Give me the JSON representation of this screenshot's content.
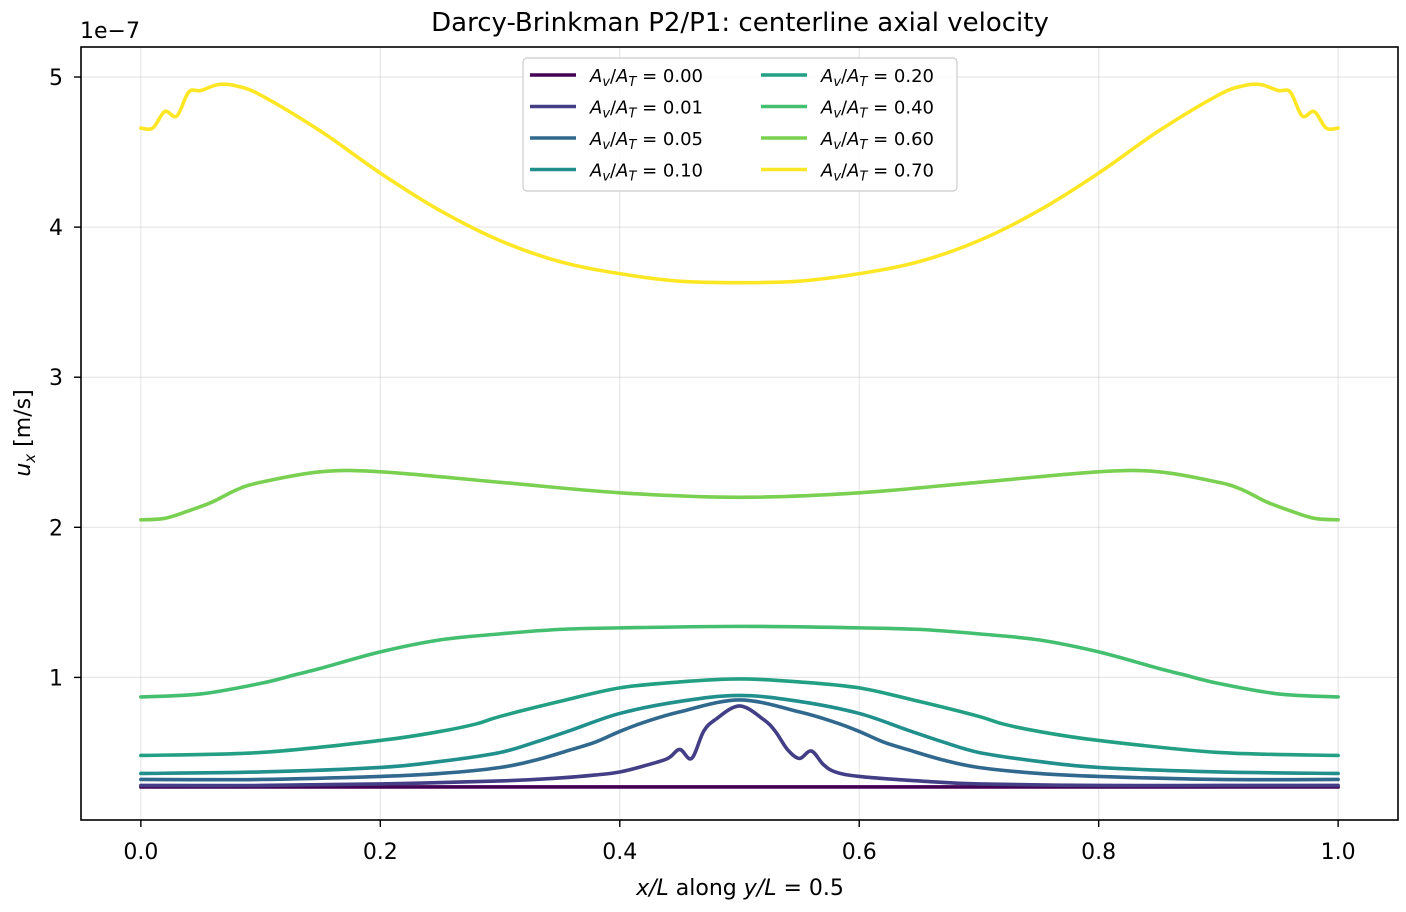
{
  "chart_data": {
    "type": "line",
    "title": "Darcy-Brinkman P2/P1: centerline axial velocity",
    "xlabel": {
      "var": "x/L",
      "mid": " along ",
      "var2": "y/L",
      "tail": " = 0.5"
    },
    "ylabel": {
      "var": "u",
      "sub": "x",
      "tail": " [m/s]"
    },
    "y_offset_label": "1e−7",
    "xlim": [
      -0.05,
      1.05
    ],
    "ylim": [
      0.05,
      5.2
    ],
    "xticks": [
      0.0,
      0.2,
      0.4,
      0.6,
      0.8,
      1.0
    ],
    "xtick_labels": [
      "0.0",
      "0.2",
      "0.4",
      "0.6",
      "0.8",
      "1.0"
    ],
    "yticks": [
      1,
      2,
      3,
      4,
      5
    ],
    "ytick_labels": [
      "1",
      "2",
      "3",
      "4",
      "5"
    ],
    "y_scale_note": "values in units of 1e-7 m/s",
    "grid": true,
    "legend": {
      "placement": "upper center",
      "columns": 2
    },
    "series": [
      {
        "name": "A_v/A_T = 0.00",
        "label": {
          "n": "A",
          "ns": "v",
          "d": "A",
          "ds": "T",
          "val": "0.00"
        },
        "color": "#440154",
        "x": [
          0.0,
          0.5,
          1.0
        ],
        "y": [
          0.27,
          0.27,
          0.27
        ]
      },
      {
        "name": "A_v/A_T = 0.01",
        "label": {
          "n": "A",
          "ns": "v",
          "d": "A",
          "ds": "T",
          "val": "0.01"
        },
        "color": "#433e85",
        "x": [
          0.0,
          0.1,
          0.2,
          0.3,
          0.35,
          0.38,
          0.4,
          0.42,
          0.44,
          0.45,
          0.46,
          0.47,
          0.48,
          0.5,
          0.52,
          0.53,
          0.54,
          0.55,
          0.56,
          0.57,
          0.58,
          0.6,
          0.65,
          0.7,
          0.8,
          0.9,
          1.0
        ],
        "y": [
          0.28,
          0.28,
          0.29,
          0.31,
          0.33,
          0.35,
          0.37,
          0.41,
          0.46,
          0.52,
          0.46,
          0.64,
          0.72,
          0.81,
          0.72,
          0.64,
          0.52,
          0.46,
          0.51,
          0.42,
          0.37,
          0.34,
          0.31,
          0.29,
          0.28,
          0.28,
          0.28
        ]
      },
      {
        "name": "A_v/A_T = 0.05",
        "label": {
          "n": "A",
          "ns": "v",
          "d": "A",
          "ds": "T",
          "val": "0.05"
        },
        "color": "#31688e",
        "x": [
          0.0,
          0.1,
          0.2,
          0.25,
          0.3,
          0.33,
          0.36,
          0.38,
          0.4,
          0.42,
          0.45,
          0.5,
          0.55,
          0.58,
          0.6,
          0.62,
          0.64,
          0.67,
          0.7,
          0.75,
          0.8,
          0.9,
          1.0
        ],
        "y": [
          0.32,
          0.32,
          0.34,
          0.36,
          0.4,
          0.45,
          0.52,
          0.57,
          0.64,
          0.7,
          0.77,
          0.85,
          0.77,
          0.7,
          0.64,
          0.57,
          0.52,
          0.45,
          0.4,
          0.36,
          0.34,
          0.32,
          0.32
        ]
      },
      {
        "name": "A_v/A_T = 0.10",
        "label": {
          "n": "A",
          "ns": "v",
          "d": "A",
          "ds": "T",
          "val": "0.10"
        },
        "color": "#21908d",
        "x": [
          0.0,
          0.1,
          0.2,
          0.25,
          0.3,
          0.33,
          0.36,
          0.4,
          0.45,
          0.5,
          0.55,
          0.6,
          0.64,
          0.67,
          0.7,
          0.75,
          0.8,
          0.9,
          1.0
        ],
        "y": [
          0.36,
          0.37,
          0.4,
          0.44,
          0.5,
          0.57,
          0.65,
          0.76,
          0.84,
          0.88,
          0.84,
          0.76,
          0.65,
          0.57,
          0.5,
          0.44,
          0.4,
          0.37,
          0.36
        ]
      },
      {
        "name": "A_v/A_T = 0.20",
        "label": {
          "n": "A",
          "ns": "v",
          "d": "A",
          "ds": "T",
          "val": "0.20"
        },
        "color": "#23a083",
        "x": [
          0.0,
          0.1,
          0.2,
          0.25,
          0.28,
          0.3,
          0.35,
          0.4,
          0.45,
          0.5,
          0.55,
          0.6,
          0.65,
          0.7,
          0.72,
          0.75,
          0.8,
          0.9,
          1.0
        ],
        "y": [
          0.48,
          0.5,
          0.58,
          0.64,
          0.69,
          0.74,
          0.84,
          0.93,
          0.97,
          0.99,
          0.97,
          0.93,
          0.84,
          0.74,
          0.69,
          0.64,
          0.58,
          0.5,
          0.48
        ]
      },
      {
        "name": "A_v/A_T = 0.40",
        "label": {
          "n": "A",
          "ns": "v",
          "d": "A",
          "ds": "T",
          "val": "0.40"
        },
        "color": "#44bf70",
        "x": [
          0.0,
          0.05,
          0.1,
          0.13,
          0.15,
          0.2,
          0.25,
          0.3,
          0.35,
          0.4,
          0.5,
          0.6,
          0.65,
          0.7,
          0.75,
          0.8,
          0.85,
          0.87,
          0.9,
          0.95,
          1.0
        ],
        "y": [
          0.87,
          0.89,
          0.96,
          1.02,
          1.06,
          1.17,
          1.25,
          1.29,
          1.32,
          1.33,
          1.34,
          1.33,
          1.32,
          1.29,
          1.25,
          1.17,
          1.06,
          1.02,
          0.96,
          0.89,
          0.87
        ]
      },
      {
        "name": "A_v/A_T = 0.60",
        "label": {
          "n": "A",
          "ns": "v",
          "d": "A",
          "ds": "T",
          "val": "0.60"
        },
        "color": "#7ad151",
        "x": [
          0.0,
          0.02,
          0.04,
          0.06,
          0.08,
          0.1,
          0.15,
          0.2,
          0.3,
          0.4,
          0.5,
          0.6,
          0.7,
          0.8,
          0.85,
          0.9,
          0.92,
          0.94,
          0.96,
          0.98,
          1.0
        ],
        "y": [
          2.05,
          2.06,
          2.11,
          2.17,
          2.25,
          2.3,
          2.37,
          2.37,
          2.3,
          2.23,
          2.2,
          2.23,
          2.3,
          2.37,
          2.37,
          2.3,
          2.25,
          2.17,
          2.11,
          2.06,
          2.05
        ]
      },
      {
        "name": "A_v/A_T = 0.70",
        "label": {
          "n": "A",
          "ns": "v",
          "d": "A",
          "ds": "T",
          "val": "0.70"
        },
        "color": "#fde725",
        "x": [
          0.0,
          0.01,
          0.02,
          0.03,
          0.04,
          0.05,
          0.065,
          0.08,
          0.1,
          0.15,
          0.2,
          0.25,
          0.3,
          0.35,
          0.4,
          0.45,
          0.5,
          0.55,
          0.6,
          0.65,
          0.7,
          0.75,
          0.8,
          0.85,
          0.9,
          0.92,
          0.935,
          0.95,
          0.96,
          0.97,
          0.98,
          0.99,
          1.0
        ],
        "y": [
          4.66,
          4.66,
          4.77,
          4.74,
          4.9,
          4.91,
          4.95,
          4.94,
          4.88,
          4.64,
          4.36,
          4.11,
          3.91,
          3.77,
          3.69,
          3.64,
          3.63,
          3.64,
          3.69,
          3.77,
          3.91,
          4.11,
          4.36,
          4.64,
          4.88,
          4.94,
          4.95,
          4.91,
          4.9,
          4.74,
          4.77,
          4.66,
          4.66
        ]
      }
    ]
  }
}
